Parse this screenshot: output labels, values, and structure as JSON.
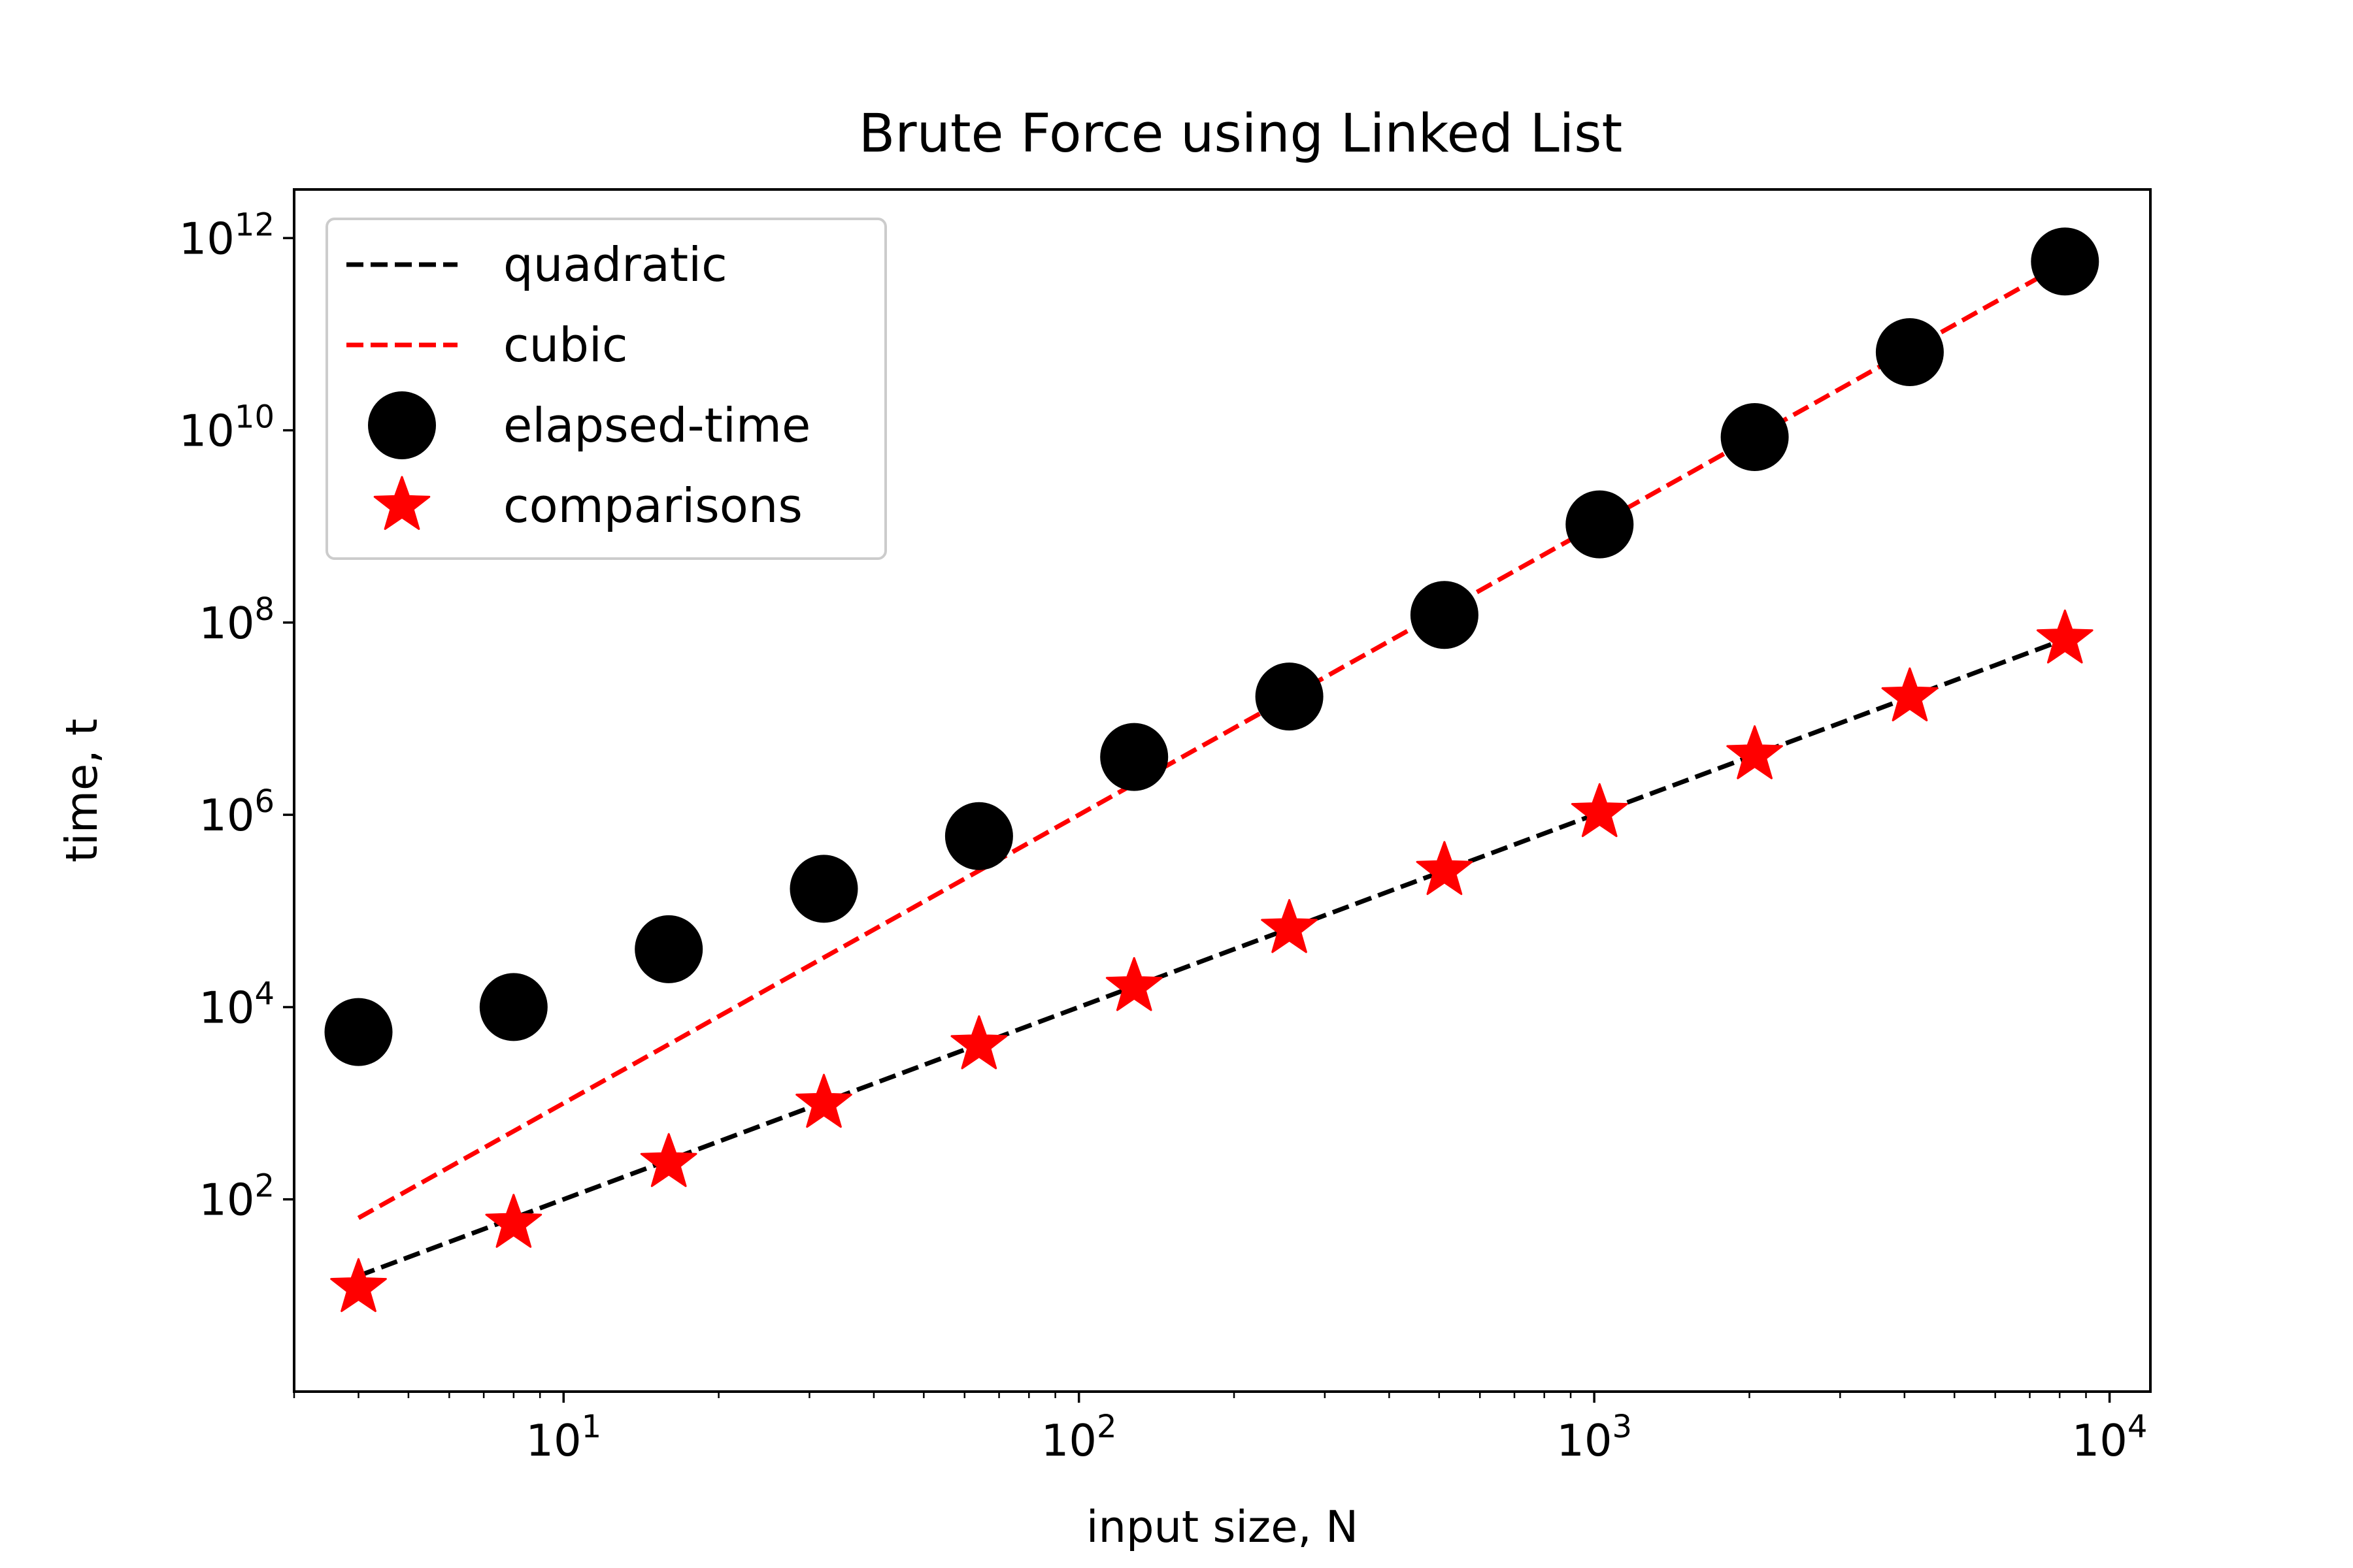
{
  "chart_data": {
    "type": "scatter",
    "title": "Brute Force using Linked List",
    "xlabel": "input size, N",
    "ylabel": "time, t",
    "xscale": "log",
    "yscale": "log",
    "xlim": [
      3,
      12000
    ],
    "ylim": [
      1,
      3200000000000.0
    ],
    "legend_position": "top-left",
    "grid": false,
    "x_ticks": [
      {
        "value": 10,
        "base": "10",
        "exp": "1"
      },
      {
        "value": 100,
        "base": "10",
        "exp": "2"
      },
      {
        "value": 1000,
        "base": "10",
        "exp": "3"
      },
      {
        "value": 10000,
        "base": "10",
        "exp": "4"
      }
    ],
    "y_ticks": [
      {
        "value": 100,
        "base": "10",
        "exp": "2"
      },
      {
        "value": 10000,
        "base": "10",
        "exp": "4"
      },
      {
        "value": 1000000,
        "base": "10",
        "exp": "6"
      },
      {
        "value": 100000000,
        "base": "10",
        "exp": "8"
      },
      {
        "value": 10000000000,
        "base": "10",
        "exp": "10"
      },
      {
        "value": 1000000000000,
        "base": "10",
        "exp": "12"
      }
    ],
    "series": [
      {
        "name": "quadratic",
        "style": "dashed-line",
        "color": "#000000",
        "x": [
          4,
          8,
          16,
          32,
          64,
          128,
          256,
          512,
          1024,
          2048,
          4096,
          8192
        ],
        "y": [
          16,
          64,
          256,
          1024,
          4096,
          16384,
          65536,
          262144,
          1048576,
          4194304,
          16777216,
          67108864
        ]
      },
      {
        "name": "cubic",
        "style": "dashed-line",
        "color": "#ff0000",
        "x": [
          4,
          8,
          16,
          32,
          64,
          128,
          256,
          512,
          1024,
          2048,
          4096,
          8192
        ],
        "y": [
          64,
          512,
          4096,
          32768,
          262144,
          2097152,
          16777216,
          134217728,
          1073741824,
          8589934592,
          68719476736,
          549755813888
        ]
      },
      {
        "name": "elapsed-time",
        "style": "circle-marker",
        "color": "#000000",
        "x": [
          4,
          8,
          16,
          32,
          64,
          128,
          256,
          512,
          1024,
          2048,
          4096,
          8192
        ],
        "y": [
          5500,
          10000,
          40000,
          170000,
          600000,
          4000000,
          17000000,
          120000000,
          1050000000,
          8500000000,
          65000000000,
          570000000000
        ]
      },
      {
        "name": "comparisons",
        "style": "star-marker",
        "color": "#ff0000",
        "x": [
          4,
          8,
          16,
          32,
          64,
          128,
          256,
          512,
          1024,
          2048,
          4096,
          8192
        ],
        "y": [
          12,
          56,
          240,
          992,
          4032,
          16256,
          65280,
          261632,
          1047552,
          4192256,
          16773120,
          67100672
        ]
      }
    ]
  }
}
